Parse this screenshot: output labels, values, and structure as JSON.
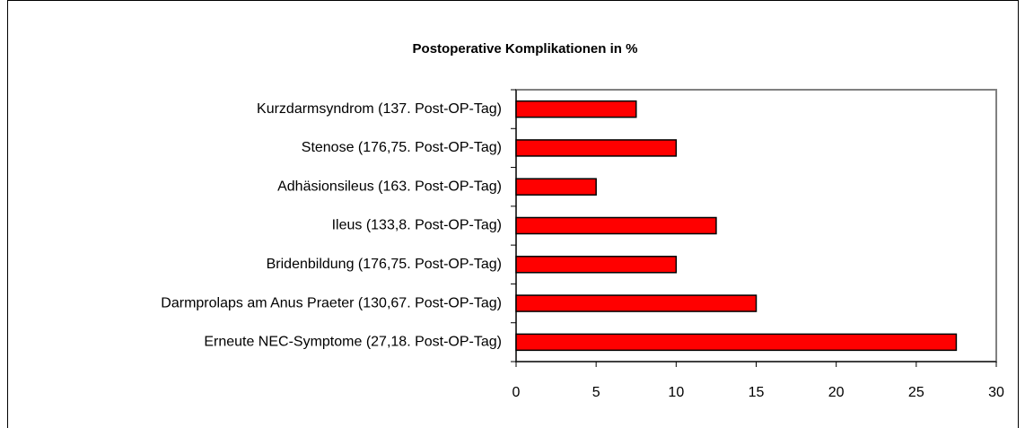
{
  "chart_data": {
    "type": "bar",
    "orientation": "horizontal",
    "title": "Postoperative Komplikationen in %",
    "categories": [
      "Kurzdarmsyndrom (137. Post-OP-Tag)",
      "Stenose (176,75. Post-OP-Tag)",
      "Adhäsionsileus (163. Post-OP-Tag)",
      "Ileus (133,8. Post-OP-Tag)",
      "Bridenbildung (176,75. Post-OP-Tag)",
      "Darmprolaps am Anus Praeter (130,67. Post-OP-Tag)",
      "Erneute NEC-Symptome (27,18. Post-OP-Tag)"
    ],
    "values": [
      7.5,
      10,
      5,
      12.5,
      10,
      15,
      27.5
    ],
    "color": "#ff0000",
    "xlim": [
      0,
      30
    ],
    "xticks": [
      0,
      5,
      10,
      15,
      20,
      25,
      30
    ],
    "grid": false
  }
}
